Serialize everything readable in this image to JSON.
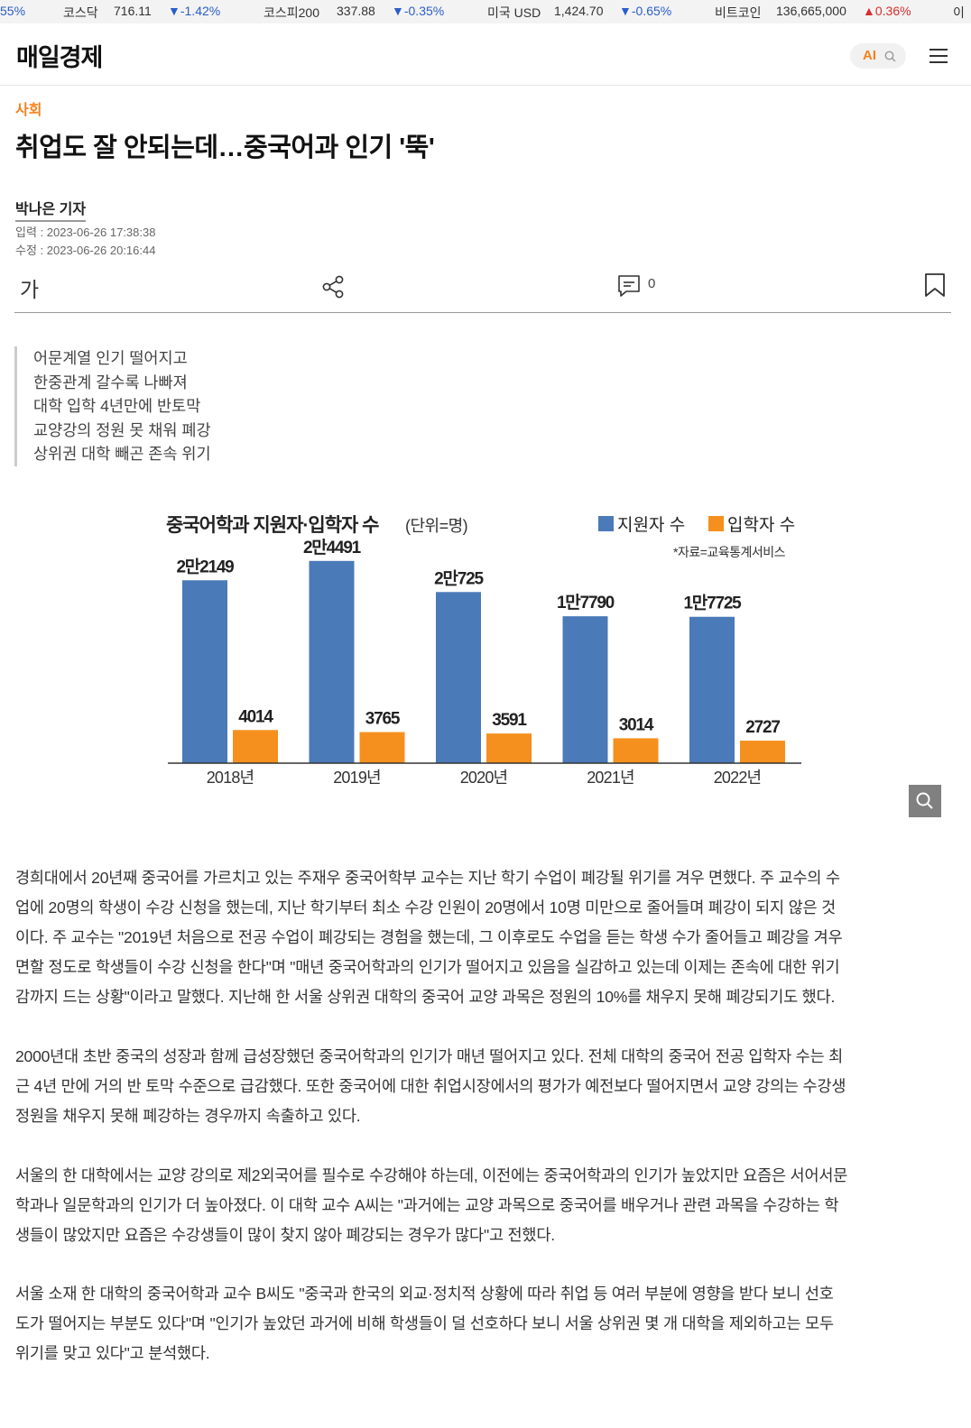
{
  "ticker": [
    {
      "name": "",
      "value": "",
      "change": "55%",
      "dir": "none"
    },
    {
      "name": "코스닥",
      "value": "716.11",
      "change": "-1.42%",
      "dir": "down"
    },
    {
      "name": "코스피200",
      "value": "337.88",
      "change": "-0.35%",
      "dir": "down"
    },
    {
      "name": "미국 USD",
      "value": "1,424.70",
      "change": "-0.65%",
      "dir": "down"
    },
    {
      "name": "비트코인",
      "value": "136,665,000",
      "change": "0.36%",
      "dir": "up"
    },
    {
      "name": "이",
      "value": "",
      "change": "",
      "dir": "none"
    }
  ],
  "header": {
    "logo": "매일경제",
    "ai_label": "AI"
  },
  "article": {
    "section": "사회",
    "headline": "취업도 잘 안되는데…중국어과 인기 '뚝'",
    "reporter": "박나은 기자",
    "published": "입력 : 2023-06-26 17:38:38",
    "modified": "수정 : 2023-06-26 20:16:44",
    "font_button": "가",
    "comment_count": "0",
    "summary": [
      "어문계열 인기 떨어지고",
      "한중관계 갈수록 나빠져",
      "대학 입학 4년만에 반토막",
      "교양강의 정원 못 채워 폐강",
      "상위권 대학 빼곤 존속 위기"
    ],
    "paragraphs": [
      [
        "경희대에서 20년째 중국어를 가르치고 있는 주재우 중국어학부 교수는 지난 학기 수업이 폐강될 위기를 겨우 면했다. 주 교수의 수",
        "업에 20명의 학생이 수강 신청을 했는데, 지난 학기부터 최소 수강 인원이 20명에서 10명 미만으로 줄어들며 폐강이 되지 않은 것",
        "이다. 주 교수는 \"2019년 처음으로 전공 수업이 폐강되는 경험을 했는데, 그 이후로도 수업을 듣는 학생 수가 줄어들고 폐강을 겨우",
        "면할 정도로 학생들이 수강 신청을 한다\"며 \"매년 중국어학과의 인기가 떨어지고 있음을 실감하고 있는데 이제는 존속에 대한 위기",
        "감까지 드는 상황\"이라고 말했다. 지난해 한 서울 상위권 대학의 중국어 교양 과목은 정원의 10%를 채우지 못해 폐강되기도 했다."
      ],
      [
        "2000년대 초반 중국의 성장과 함께 급성장했던 중국어학과의 인기가 매년 떨어지고 있다. 전체 대학의 중국어 전공 입학자 수는 최",
        "근 4년 만에 거의 반 토막 수준으로 급감했다. 또한 중국어에 대한 취업시장에서의 평가가 예전보다 떨어지면서 교양 강의는 수강생",
        "정원을 채우지 못해 폐강하는 경우까지 속출하고 있다."
      ],
      [
        "서울의 한 대학에서는 교양 강의로 제2외국어를 필수로 수강해야 하는데, 이전에는 중국어학과의 인기가 높았지만 요즘은 서어서문",
        "학과나 일문학과의 인기가 더 높아졌다. 이 대학 교수 A씨는 \"과거에는 교양 과목으로 중국어를 배우거나 관련 과목을 수강하는 학",
        "생들이 많았지만 요즘은 수강생들이 많이 찾지 않아 폐강되는 경우가 많다\"고 전했다."
      ],
      [
        "서울 소재 한 대학의 중국어학과 교수 B씨도 \"중국과 한국의 외교·정치적 상황에 따라 취업 등 여러 부분에 영향을 받다 보니 선호",
        "도가 떨어지는 부분도 있다\"며 \"인기가 높았던 과거에 비해 학생들이 덜 선호하다 보니 서울 상위권 몇 개 대학을 제외하고는 모두",
        "위기를 맞고 있다\"고 분석했다."
      ]
    ]
  },
  "chart_data": {
    "type": "bar",
    "title": "중국어학과 지원자·입학자 수",
    "unit": "(단위=명)",
    "source": "*자료=교육통계서비스",
    "categories": [
      "2018년",
      "2019년",
      "2020년",
      "2021년",
      "2022년"
    ],
    "series": [
      {
        "name": "지원자 수",
        "color": "#4a7ab8",
        "values": [
          22149,
          24491,
          20725,
          17790,
          17725
        ],
        "labels": [
          "2만2149",
          "2만4491",
          "2만725",
          "1만7790",
          "1만7725"
        ]
      },
      {
        "name": "입학자 수",
        "color": "#f5901e",
        "values": [
          4014,
          3765,
          3591,
          3014,
          2727
        ],
        "labels": [
          "4014",
          "3765",
          "3591",
          "3014",
          "2727"
        ]
      }
    ],
    "ylim": [
      0,
      26000
    ],
    "grid": false,
    "legend_position": "top-right"
  }
}
